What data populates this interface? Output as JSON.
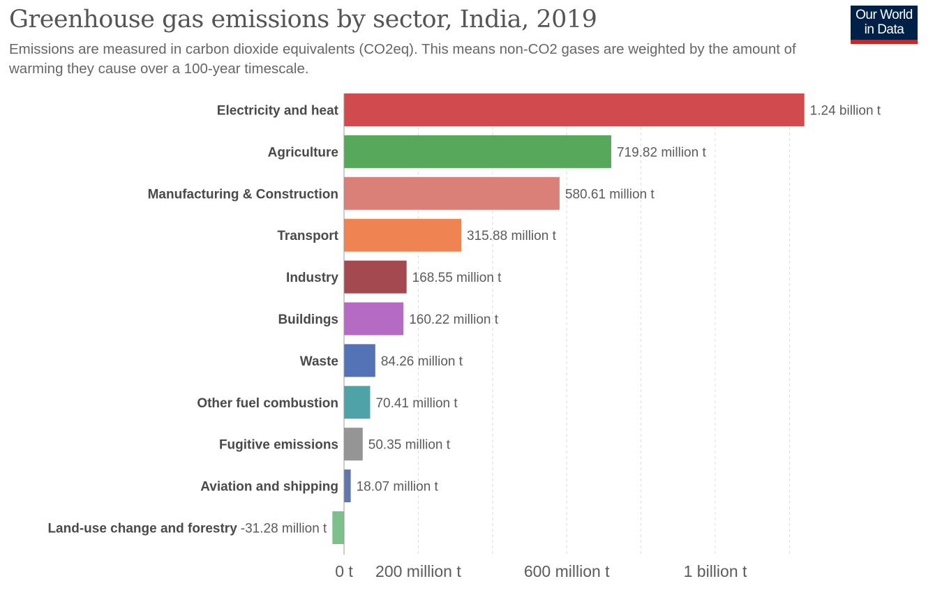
{
  "header": {
    "title": "Greenhouse gas emissions by sector, India, 2019",
    "subtitle": "Emissions are measured in carbon dioxide equivalents (CO2eq). This means non-CO2 gases are weighted by the amount of warming they cause over a 100-year timescale.",
    "logo_line1": "Our World",
    "logo_line2": "in Data"
  },
  "chart_data": {
    "type": "bar",
    "orientation": "horizontal",
    "title": "Greenhouse gas emissions by sector, India, 2019",
    "xlabel": "",
    "ylabel": "",
    "unit": "t CO2eq",
    "xlim": [
      -31280000,
      1240000000
    ],
    "grid": true,
    "categories": [
      "Electricity and heat",
      "Agriculture",
      "Manufacturing & Construction",
      "Transport",
      "Industry",
      "Buildings",
      "Waste",
      "Other fuel combustion",
      "Fugitive emissions",
      "Aviation and shipping",
      "Land-use change and forestry"
    ],
    "values": [
      1240000000,
      719820000,
      580610000,
      315880000,
      168550000,
      160220000,
      84260000,
      70410000,
      50350000,
      18070000,
      -31280000
    ],
    "value_labels": [
      "1.24 billion t",
      "719.82 million t",
      "580.61 million t",
      "315.88 million t",
      "168.55 million t",
      "160.22 million t",
      "84.26 million t",
      "70.41 million t",
      "50.35 million t",
      "18.07 million t",
      "-31.28 million t"
    ],
    "colors": [
      "#d14a4d",
      "#58a85c",
      "#da8078",
      "#ef8352",
      "#a4494f",
      "#b56ac3",
      "#5472b6",
      "#4ea2a8",
      "#959595",
      "#6176ad",
      "#7ec08c"
    ],
    "x_ticks": [
      {
        "value": 0,
        "label": "0 t"
      },
      {
        "value": 200000000,
        "label": "200 million t"
      },
      {
        "value": 400000000,
        "label": ""
      },
      {
        "value": 600000000,
        "label": "600 million t"
      },
      {
        "value": 800000000,
        "label": ""
      },
      {
        "value": 1000000000,
        "label": "1 billion t"
      },
      {
        "value": 1200000000,
        "label": ""
      }
    ]
  }
}
